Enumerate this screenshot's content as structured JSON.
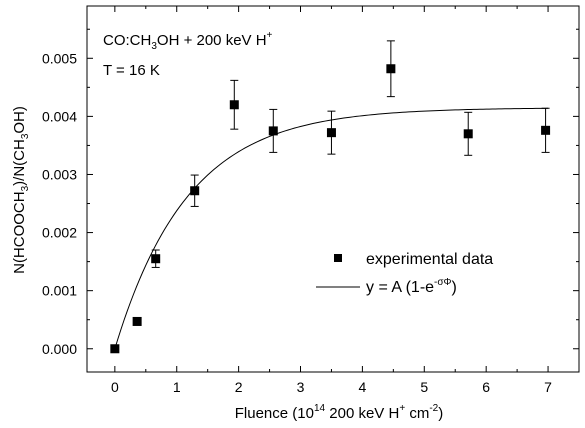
{
  "chart_data": {
    "type": "scatter",
    "xlim": [
      -0.45,
      7.5
    ],
    "ylim": [
      -0.0004,
      0.0059
    ],
    "x_ticks": [
      0,
      1,
      2,
      3,
      4,
      5,
      6,
      7
    ],
    "x_tick_labels": [
      "0",
      "1",
      "2",
      "3",
      "4",
      "5",
      "6",
      "7"
    ],
    "y_ticks": [
      0.0,
      0.001,
      0.002,
      0.003,
      0.004,
      0.005
    ],
    "y_tick_labels": [
      "0.000",
      "0.001",
      "0.002",
      "0.003",
      "0.004",
      "0.005"
    ],
    "xlabel": {
      "text": "Fluence (10",
      "sup1": "14",
      "mid": " 200 keV H",
      "sup2": "+",
      "mid2": " cm",
      "sup3": "-2",
      "end": ")"
    },
    "ylabel": {
      "p1": "N(HCOOCH",
      "sub1": "3",
      "p2": ")/N(CH",
      "sub2": "3",
      "p3": "OH)"
    },
    "annotation_line1": {
      "p1": "CO:CH",
      "sub1": "3",
      "p2": "OH + 200 keV H",
      "sup1": "+"
    },
    "annotation_line2": "T = 16 K",
    "grid": false,
    "legend_position": "lower-right",
    "series": [
      {
        "name": "experimental data",
        "kind": "points",
        "marker": "square",
        "color": "#000000",
        "x": [
          0.0,
          0.36,
          0.66,
          1.29,
          1.93,
          2.56,
          3.5,
          4.46,
          5.71,
          6.96
        ],
        "y": [
          0.0,
          0.00047,
          0.00155,
          0.00272,
          0.0042,
          0.00375,
          0.00372,
          0.00482,
          0.0037,
          0.00376
        ],
        "yerr": [
          0.0,
          0.0,
          0.00015,
          0.00027,
          0.00042,
          0.00037,
          0.00037,
          0.00048,
          0.00037,
          0.00038
        ]
      },
      {
        "name_parts": {
          "p1": "y = A (1-e",
          "sup": "-σΦ",
          "p2": ")"
        },
        "kind": "fit",
        "color": "#000000",
        "A": 0.00415,
        "sigma": 0.85,
        "x_range": [
          0,
          7
        ]
      }
    ]
  }
}
